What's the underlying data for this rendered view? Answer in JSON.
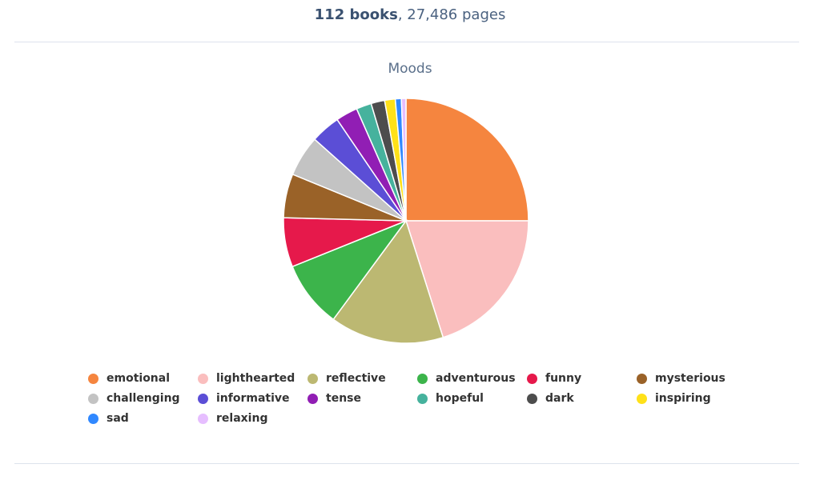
{
  "summary": {
    "books": "112 books",
    "sep": ", ",
    "pages": "27,486 pages"
  },
  "chart_data": {
    "type": "pie",
    "title": "Moods",
    "legend_position": "bottom",
    "categories": [
      "emotional",
      "lighthearted",
      "reflective",
      "adventurous",
      "funny",
      "mysterious",
      "challenging",
      "informative",
      "tense",
      "hopeful",
      "dark",
      "inspiring",
      "sad",
      "relaxing"
    ],
    "values": [
      25.0,
      20.1,
      15.0,
      8.8,
      6.5,
      5.8,
      5.4,
      3.9,
      2.9,
      2.0,
      1.8,
      1.4,
      0.8,
      0.6
    ],
    "colors": [
      "#f5853f",
      "#fabebe",
      "#bcb872",
      "#3cb44b",
      "#e6194b",
      "#9a6228",
      "#c3c3c3",
      "#5b4ed6",
      "#911eb4",
      "#46b29d",
      "#4d4d4d",
      "#ffe119",
      "#3088ff",
      "#e6beff"
    ]
  }
}
